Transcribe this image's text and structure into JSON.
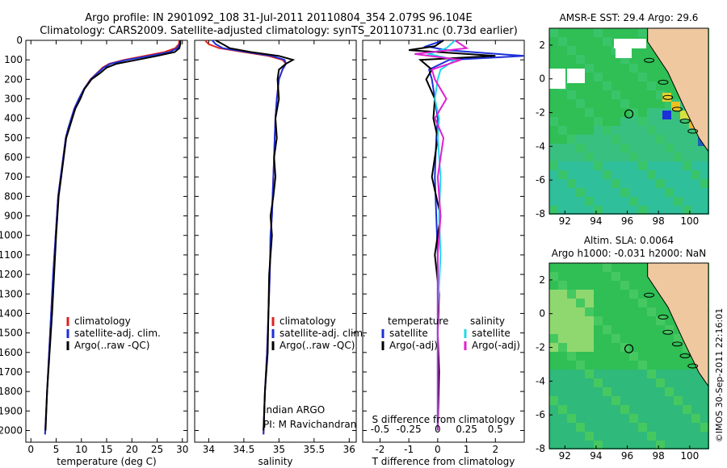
{
  "titles": {
    "line1": "Argo profile: IN 2901092_108 31-Jul-2011 20110804_354 2.079S 96.104E",
    "line2": "Climatology: CARS2009. Satellite-adjusted climatology: synTS_20110731.nc (0.73d earlier)"
  },
  "colors": {
    "climatology": "#e02020",
    "satellite": "#1c2fd8",
    "argo": "#000000",
    "satellite_s": "#20d8e8",
    "argo_s": "#e020d0",
    "ocean_green": "#2fbf55",
    "ocean_teal": "#2fbf9a",
    "land": "#f0c8a0"
  },
  "chart_data": [
    {
      "type": "line",
      "title": "",
      "xlabel": "temperature (deg C)",
      "ylabel": "",
      "xlim": [
        -1,
        31
      ],
      "ylim": [
        2060,
        0
      ],
      "xticks": [
        "0",
        "5",
        "10",
        "15",
        "20",
        "25",
        "30"
      ],
      "xtick_values": [
        0,
        5,
        10,
        15,
        20,
        25,
        30
      ],
      "yticks": [
        "0",
        "100",
        "200",
        "300",
        "400",
        "500",
        "600",
        "700",
        "800",
        "900",
        "1000",
        "1100",
        "1200",
        "1300",
        "1400",
        "1500",
        "1600",
        "1700",
        "1800",
        "1900",
        "2000"
      ],
      "ytick_values": [
        0,
        100,
        200,
        300,
        400,
        500,
        600,
        700,
        800,
        900,
        1000,
        1100,
        1200,
        1300,
        1400,
        1500,
        1600,
        1700,
        1800,
        1900,
        2000
      ],
      "legend": [
        "climatology",
        "satellite-adj. clim.",
        "Argo(..raw -QC)"
      ],
      "legend_position": "lower-right",
      "series": [
        {
          "name": "climatology",
          "color": "climatology",
          "x": [
            29.4,
            29.3,
            28.6,
            26.5,
            22.5,
            18.5,
            15.5,
            14.2,
            13.0,
            11.8,
            10.5,
            9.5,
            8.6,
            8.0,
            7.4,
            6.9,
            6.4,
            5.9,
            5.4,
            4.9,
            4.4,
            4.0,
            3.6,
            3.2,
            2.8
          ],
          "y": [
            0,
            20,
            40,
            60,
            80,
            100,
            120,
            140,
            170,
            200,
            250,
            300,
            350,
            400,
            450,
            500,
            600,
            700,
            800,
            1000,
            1200,
            1400,
            1600,
            1800,
            2020
          ]
        },
        {
          "name": "satellite-adj. clim.",
          "color": "satellite",
          "x": [
            29.6,
            29.5,
            29.0,
            27.5,
            23.5,
            19.0,
            15.8,
            14.4,
            13.1,
            11.9,
            10.5,
            9.5,
            8.6,
            8.0,
            7.4,
            6.9,
            6.4,
            5.9,
            5.4,
            4.9,
            4.4,
            4.0,
            3.6,
            3.2,
            2.8
          ],
          "y": [
            0,
            20,
            40,
            60,
            80,
            100,
            120,
            140,
            170,
            200,
            250,
            300,
            350,
            400,
            450,
            500,
            600,
            700,
            800,
            1000,
            1200,
            1400,
            1600,
            1800,
            2020
          ]
        },
        {
          "name": "Argo(..raw -QC)",
          "color": "argo",
          "x": [
            29.6,
            29.6,
            29.4,
            28.5,
            25.0,
            21.0,
            17.0,
            15.0,
            13.6,
            12.0,
            10.6,
            9.8,
            8.8,
            8.2,
            7.6,
            7.0,
            6.5,
            6.0,
            5.5,
            5.0,
            4.6,
            4.2,
            3.7,
            3.2,
            2.9
          ],
          "y": [
            0,
            20,
            40,
            60,
            80,
            100,
            120,
            140,
            170,
            200,
            250,
            300,
            350,
            400,
            450,
            500,
            600,
            700,
            800,
            1000,
            1200,
            1400,
            1600,
            1800,
            2000
          ]
        }
      ]
    },
    {
      "type": "line",
      "title": "",
      "xlabel": "salinity",
      "ylabel": "",
      "xlim": [
        33.8,
        36.1
      ],
      "ylim": [
        2060,
        0
      ],
      "xticks": [
        "34",
        "34.5",
        "35",
        "35.5",
        "36"
      ],
      "xtick_values": [
        34,
        34.5,
        35,
        35.5,
        36
      ],
      "legend": [
        "climatology",
        "satellite-adj. clim.",
        "Argo(..raw -QC)"
      ],
      "legend_position": "lower-right",
      "annotation": [
        "Indian ARGO",
        "PI: M Ravichandran"
      ],
      "series": [
        {
          "name": "climatology",
          "color": "climatology",
          "x": [
            33.95,
            34.0,
            34.15,
            34.5,
            34.85,
            35.05,
            35.1,
            35.05,
            35.0,
            34.97,
            34.95,
            34.94,
            34.93,
            34.92,
            34.91,
            34.9,
            34.88,
            34.87,
            34.85,
            34.83,
            34.8,
            34.78
          ],
          "y": [
            0,
            20,
            40,
            60,
            80,
            100,
            120,
            150,
            200,
            300,
            400,
            500,
            600,
            700,
            800,
            900,
            1000,
            1200,
            1400,
            1600,
            1800,
            2020
          ]
        },
        {
          "name": "satellite-adj. clim.",
          "color": "satellite",
          "x": [
            34.05,
            34.1,
            34.2,
            34.55,
            34.9,
            35.08,
            35.1,
            35.05,
            35.0,
            34.97,
            34.95,
            34.94,
            34.93,
            34.92,
            34.91,
            34.9,
            34.88,
            34.87,
            34.85,
            34.83,
            34.8,
            34.78
          ],
          "y": [
            0,
            20,
            40,
            60,
            80,
            100,
            120,
            150,
            200,
            300,
            400,
            500,
            600,
            700,
            800,
            900,
            1000,
            1200,
            1400,
            1600,
            1800,
            2020
          ]
        },
        {
          "name": "Argo(..raw -QC)",
          "color": "argo",
          "x": [
            34.1,
            34.2,
            34.3,
            34.6,
            35.0,
            35.2,
            35.1,
            35.0,
            34.98,
            35.0,
            34.95,
            34.97,
            34.93,
            34.95,
            34.92,
            34.88,
            34.9,
            34.86,
            34.85,
            34.84,
            34.8,
            34.78
          ],
          "y": [
            0,
            20,
            40,
            60,
            80,
            100,
            120,
            150,
            200,
            300,
            400,
            500,
            600,
            700,
            800,
            900,
            1000,
            1200,
            1400,
            1600,
            1800,
            2000
          ]
        }
      ]
    },
    {
      "type": "line",
      "title": "",
      "xlabel": "T difference from climatology",
      "xlabel_top": "S difference from climatology",
      "ylabel": "",
      "xlim": [
        -2.6,
        3.0
      ],
      "ylim": [
        2060,
        0
      ],
      "xticks": [
        "-2",
        "-1",
        "0",
        "1",
        "2"
      ],
      "xtick_values": [
        -2,
        -1,
        0,
        1,
        2
      ],
      "xticks_top": [
        "-0.5",
        "-0.25",
        "0",
        "0.25",
        "0.5"
      ],
      "legend_temperature": {
        "title": "temperature",
        "items": [
          "satellite",
          "Argo(-adj)"
        ]
      },
      "legend_salinity": {
        "title": "salinity",
        "items": [
          "satellite",
          "Argo(-adj)"
        ]
      },
      "series": [
        {
          "name": "satellite",
          "color": "satellite",
          "x": [
            0.2,
            -0.4,
            0.3,
            3.0,
            0.4,
            -0.3,
            -0.2,
            -0.1,
            0.0,
            -0.05,
            -0.1,
            -0.05,
            0.0,
            0.0,
            0.0,
            0.0,
            0.0
          ],
          "y": [
            0,
            30,
            50,
            80,
            100,
            150,
            200,
            300,
            400,
            500,
            700,
            900,
            1100,
            1300,
            1500,
            1700,
            2000
          ]
        },
        {
          "name": "Argo(-adj)",
          "color": "argo",
          "x": [
            0.2,
            -0.1,
            -1.0,
            2.0,
            -0.6,
            -0.2,
            -0.4,
            -0.1,
            -0.15,
            0.0,
            -0.2,
            0.1,
            -0.1,
            0.05,
            0.0,
            0.05,
            0.0
          ],
          "y": [
            0,
            30,
            50,
            80,
            100,
            150,
            200,
            300,
            400,
            500,
            700,
            900,
            1100,
            1300,
            1500,
            1700,
            2000
          ]
        },
        {
          "name": "satellite",
          "color": "satellite_s",
          "x": [
            0.6,
            0.3,
            -0.3,
            0.6,
            0.1,
            0.0,
            -0.1,
            0.05,
            0.0,
            0.1,
            0.05,
            0.1,
            0.0,
            0.0,
            0.0
          ],
          "y": [
            0,
            40,
            70,
            100,
            150,
            200,
            300,
            400,
            500,
            700,
            900,
            1100,
            1400,
            1700,
            2000
          ]
        },
        {
          "name": "Argo(-adj)",
          "color": "argo_s",
          "x": [
            0.6,
            1.0,
            -0.8,
            0.8,
            -0.2,
            -0.1,
            0.3,
            -0.1,
            0.2,
            0.0,
            0.1,
            0.0,
            0.0,
            0.0,
            0.0
          ],
          "y": [
            0,
            40,
            70,
            100,
            150,
            200,
            300,
            400,
            500,
            700,
            900,
            1100,
            1400,
            1700,
            2000
          ]
        }
      ]
    },
    {
      "type": "heatmap",
      "title": "AMSR-E SST: 29.4  Argo: 29.6",
      "xlim": [
        91,
        101.2
      ],
      "ylim": [
        -8,
        3
      ],
      "xticks": [
        "92",
        "94",
        "96",
        "98",
        "100"
      ],
      "xtick_values": [
        92,
        94,
        96,
        98,
        100
      ],
      "yticks": [
        "2",
        "0",
        "-2",
        "-4",
        "-6",
        "-8"
      ],
      "ytick_values": [
        2,
        0,
        -2,
        -4,
        -6,
        -8
      ],
      "profile_location": {
        "lon": 96.104,
        "lat": -2.079
      }
    },
    {
      "type": "heatmap",
      "title": "Altim. SLA: 0.0064",
      "subtitle": "Argo h1000: -0.031 h2000: NaN",
      "xlim": [
        91,
        101.2
      ],
      "ylim": [
        -8,
        3
      ],
      "xticks": [
        "92",
        "94",
        "96",
        "98",
        "100"
      ],
      "xtick_values": [
        92,
        94,
        96,
        98,
        100
      ],
      "yticks": [
        "2",
        "0",
        "-2",
        "-4",
        "-6",
        "-8"
      ],
      "ytick_values": [
        2,
        0,
        -2,
        -4,
        -6,
        -8
      ],
      "profile_location": {
        "lon": 96.104,
        "lat": -2.079
      }
    }
  ],
  "side_label": "©IMOS 30-Sep-2011 22:16:01"
}
